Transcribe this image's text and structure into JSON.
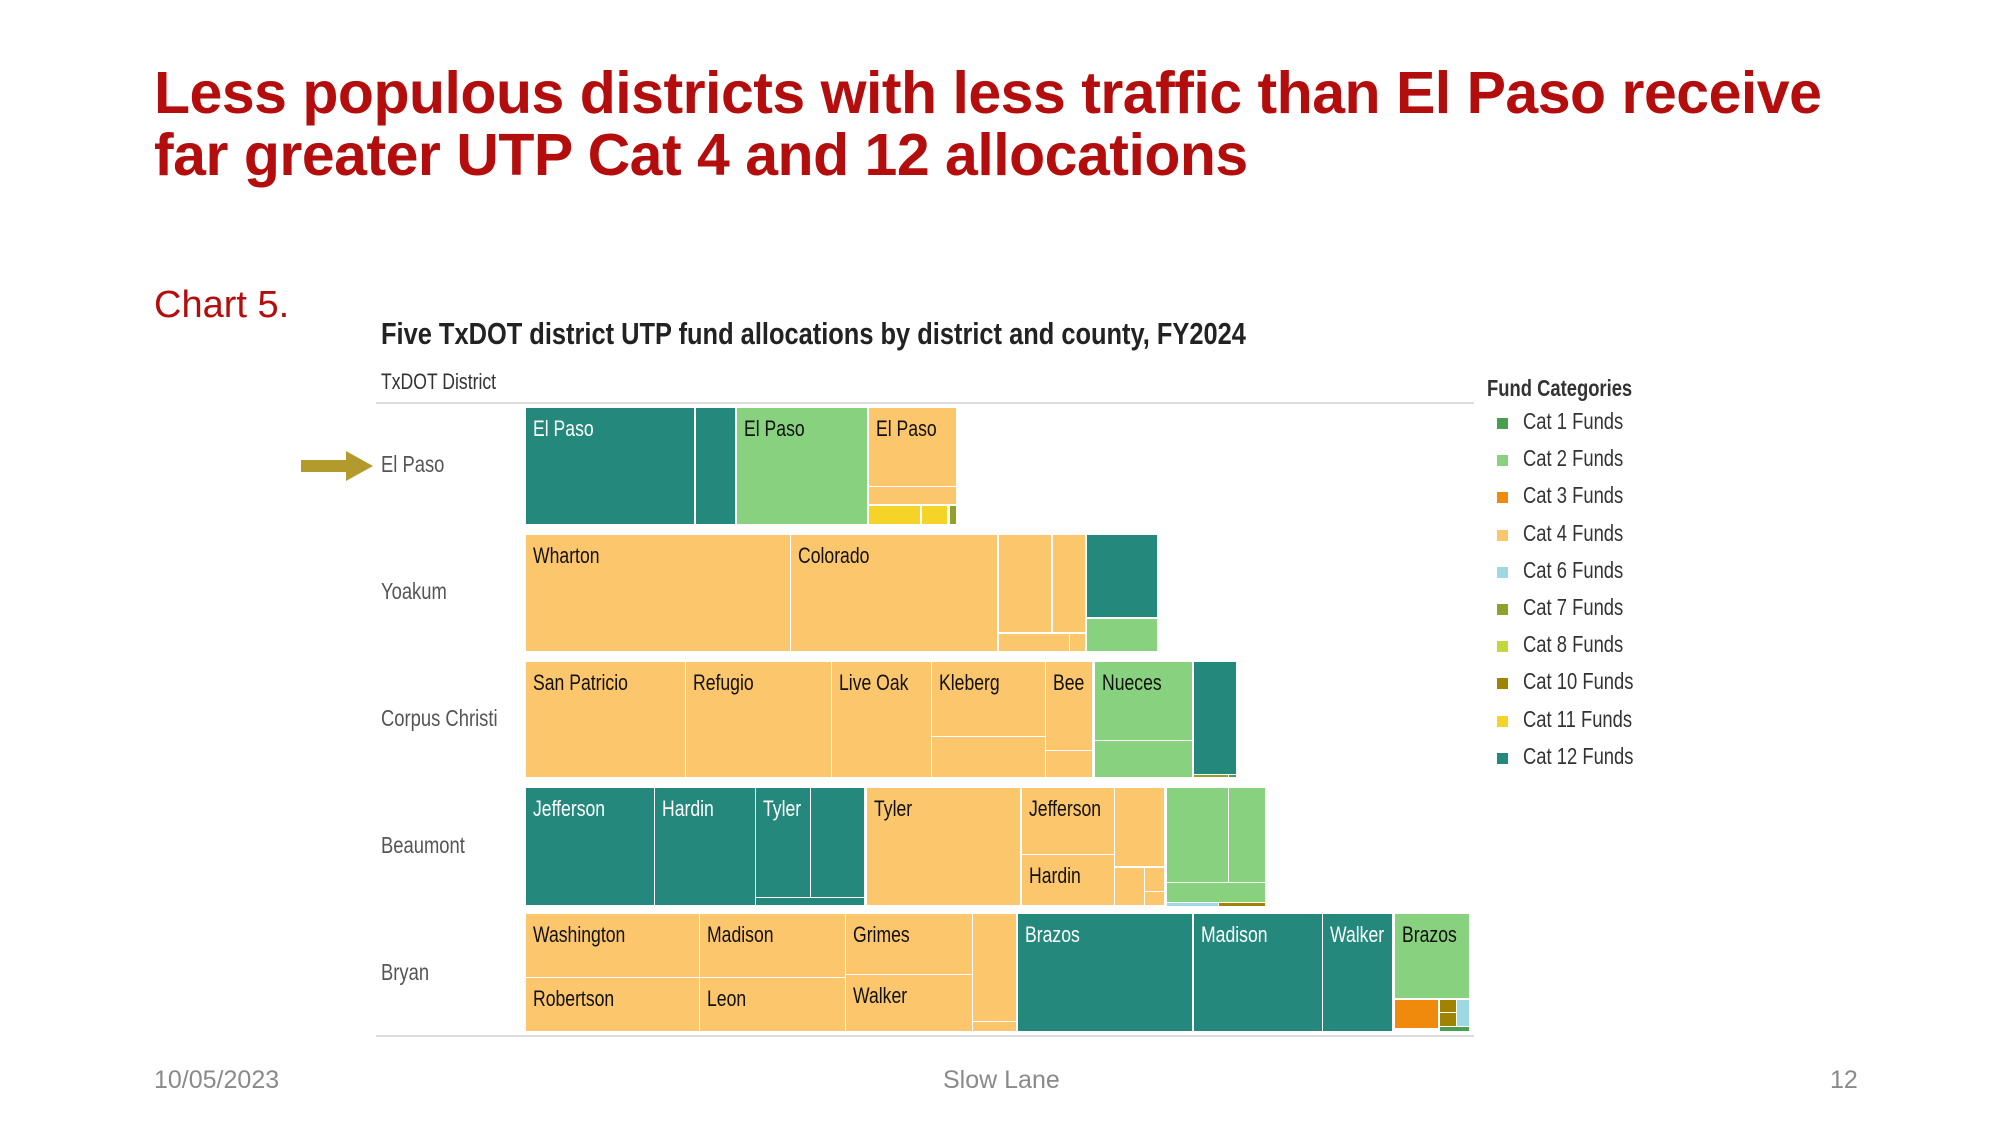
{
  "slide": {
    "title_line1": "Less populous districts with less traffic than El Paso receive",
    "title_line2": "far greater UTP Cat 4 and 12 allocations",
    "chart_number": "Chart 5.",
    "footer_date": "10/05/2023",
    "footer_center": "Slow Lane",
    "page_number": "12",
    "title_color": "#b30d0d",
    "arrow_color": "#b39a2c"
  },
  "chart_data": {
    "type": "treemap",
    "title": "Five TxDOT district UTP fund allocations by district and county, FY2024",
    "row_axis_title": "TxDOT District",
    "legend_title": "Fund Categories",
    "legend_placement": "right",
    "legend": [
      {
        "key": "cat1",
        "label": "Cat 1 Funds",
        "color": "#4a9e4f"
      },
      {
        "key": "cat2",
        "label": "Cat 2 Funds",
        "color": "#88d17f"
      },
      {
        "key": "cat3",
        "label": "Cat 3 Funds",
        "color": "#ef8a0c"
      },
      {
        "key": "cat4",
        "label": "Cat 4 Funds",
        "color": "#fcc66d"
      },
      {
        "key": "cat6",
        "label": "Cat 6 Funds",
        "color": "#9ed9e3"
      },
      {
        "key": "cat7",
        "label": "Cat 7 Funds",
        "color": "#8fa12a"
      },
      {
        "key": "cat8",
        "label": "Cat 8 Funds",
        "color": "#c5d63d"
      },
      {
        "key": "cat10",
        "label": "Cat 10 Funds",
        "color": "#a08300"
      },
      {
        "key": "cat11",
        "label": "Cat 11 Funds",
        "color": "#f5d327"
      },
      {
        "key": "cat12",
        "label": "Cat 12 Funds",
        "color": "#24897c"
      }
    ],
    "districts": [
      {
        "name": "El Paso",
        "highlighted": true,
        "labels": {
          "cat12": [
            "El Paso"
          ],
          "cat2": [
            "El Paso"
          ],
          "cat4": [
            "El Paso"
          ]
        }
      },
      {
        "name": "Yoakum",
        "labels": {
          "cat4": [
            "Wharton",
            "Colorado"
          ]
        }
      },
      {
        "name": "Corpus Christi",
        "labels": {
          "cat4": [
            "San Patricio",
            "Refugio",
            "Live Oak",
            "Kleberg",
            "Bee"
          ],
          "cat2": [
            "Nueces"
          ]
        }
      },
      {
        "name": "Beaumont",
        "labels": {
          "cat12": [
            "Jefferson",
            "Hardin",
            "Tyler"
          ],
          "cat4": [
            "Tyler",
            "Jefferson",
            "Hardin"
          ]
        }
      },
      {
        "name": "Bryan",
        "labels": {
          "cat4": [
            "Washington",
            "Robertson",
            "Madison",
            "Leon",
            "Grimes",
            "Walker"
          ],
          "cat12": [
            "Brazos",
            "Madison",
            "Walker"
          ],
          "cat2": [
            "Brazos"
          ]
        }
      }
    ]
  }
}
